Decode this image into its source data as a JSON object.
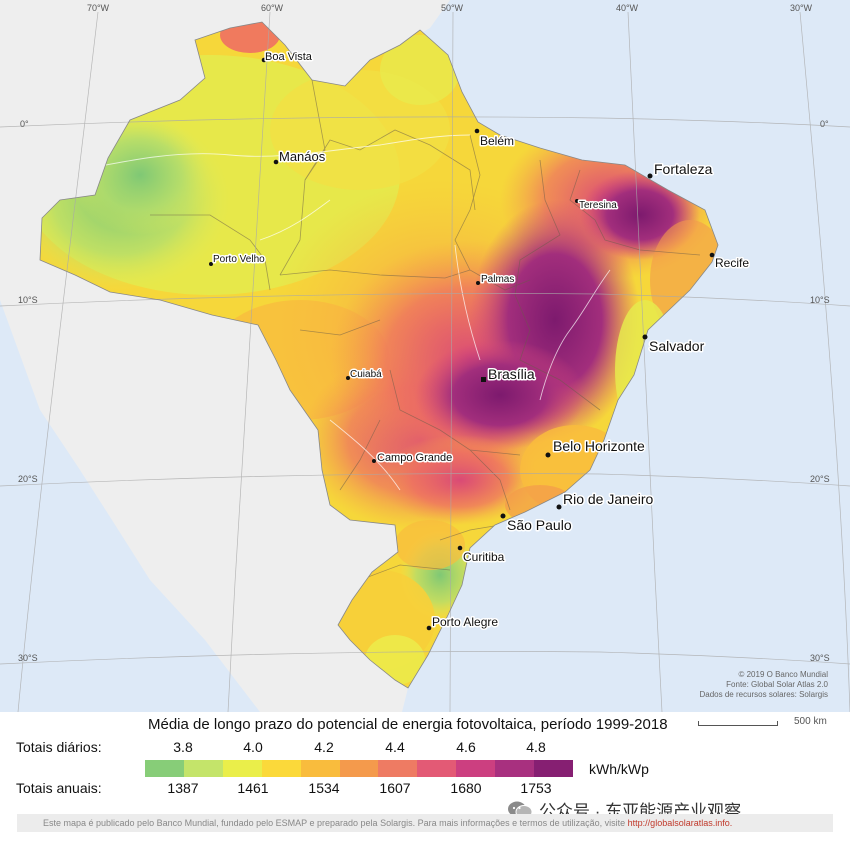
{
  "map": {
    "grid_lon_labels": [
      "70°W",
      "60°W",
      "50°W",
      "40°W",
      "30°W"
    ],
    "grid_lat_labels": [
      "0°",
      "10°S",
      "20°S",
      "30°S"
    ],
    "cities": [
      {
        "name": "Boa Vista",
        "size": "small"
      },
      {
        "name": "Belém",
        "size": "small"
      },
      {
        "name": "Manáos",
        "size": "medium"
      },
      {
        "name": "Fortaleza",
        "size": "large"
      },
      {
        "name": "Teresina",
        "size": "tiny"
      },
      {
        "name": "Recife",
        "size": "small"
      },
      {
        "name": "Porto Velho",
        "size": "tiny"
      },
      {
        "name": "Palmas",
        "size": "tiny"
      },
      {
        "name": "Salvador",
        "size": "large"
      },
      {
        "name": "Cuiabá",
        "size": "tiny"
      },
      {
        "name": "Brasília",
        "size": "large"
      },
      {
        "name": "Belo Horizonte",
        "size": "large"
      },
      {
        "name": "Campo Grande",
        "size": "small"
      },
      {
        "name": "Rio de Janeiro",
        "size": "large"
      },
      {
        "name": "São Paulo",
        "size": "large"
      },
      {
        "name": "Curitiba",
        "size": "small"
      },
      {
        "name": "Porto Alegre",
        "size": "small"
      }
    ],
    "credit_lines": [
      "© 2019 O Banco Mundial",
      "Fonte: Global Solar Atlas 2.0",
      "Dados de recursos solares: Solargis"
    ],
    "colors": {
      "ocean": "#dde9f7",
      "land_outside": "#eeeeee"
    }
  },
  "legend": {
    "title": "Média de longo prazo do potencial de energia fotovoltaica, período 1999-2018",
    "daily_label": "Totais diários:",
    "annual_label": "Totais anuais:",
    "daily_ticks": [
      "3.8",
      "4.0",
      "4.2",
      "4.4",
      "4.6",
      "4.8"
    ],
    "annual_ticks": [
      "1387",
      "1461",
      "1534",
      "1607",
      "1680",
      "1753"
    ],
    "unit": "kWh/kWp",
    "colors": [
      "#87cd78",
      "#c4e46a",
      "#eaee4a",
      "#fbd93a",
      "#f9bc3d",
      "#f49a4c",
      "#ee7b63",
      "#e35a75",
      "#cc3f80",
      "#a8307f",
      "#861f72"
    ],
    "scale_label": "500 km"
  },
  "watermark": {
    "text": "公众号 · 东亚能源产业观察"
  },
  "footer": {
    "text": "Este mapa é publicado pelo Banco Mundial, fundado pelo ESMAP e preparado pela Solargis. Para mais informações e termos de utilização, visite ",
    "link": "http://globalsolaratlas.info."
  }
}
